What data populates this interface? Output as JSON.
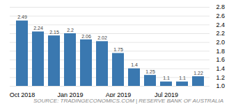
{
  "chart_data": {
    "type": "bar",
    "categories": [
      "Oct 2018",
      null,
      null,
      "Jan 2019",
      null,
      null,
      "Apr 2019",
      null,
      null,
      "Jul 2019",
      null,
      null
    ],
    "values": [
      2.49,
      2.24,
      2.15,
      2.2,
      2.06,
      2.02,
      1.75,
      1.4,
      1.25,
      1.1,
      1.1,
      1.22
    ],
    "color": "#3a78b0",
    "ylim": [
      1.0,
      2.8
    ],
    "yticks": [
      {
        "value": 1.0,
        "label": "1.0"
      },
      1.2,
      1.4,
      1.6,
      1.8,
      {
        "value": 2.0,
        "label": "2.0"
      },
      2.2,
      2.4,
      2.6,
      2.8
    ],
    "grid": true,
    "data_labels": true,
    "annotations": [
      "SOURCE: TRADINGECONOMICS.COM | RESERVE BANK OF AUSTRALIA"
    ]
  }
}
